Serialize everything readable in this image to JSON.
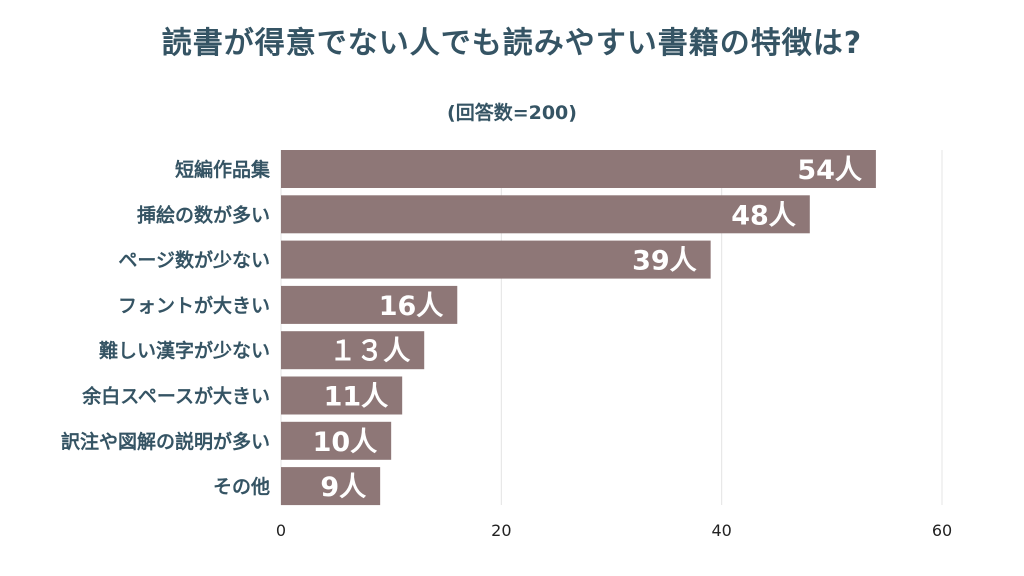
{
  "chart_data": {
    "type": "bar",
    "orientation": "horizontal",
    "title": "読書が得意でない人でも読みやすい書籍の特徴は?",
    "subtitle": "(回答数=200)",
    "categories": [
      "短編作品集",
      "挿絵の数が多い",
      "ページ数が少ない",
      "フォントが大きい",
      "難しい漢字が少ない",
      "余白スペースが大きい",
      "訳注や図解の説明が多い",
      "その他"
    ],
    "values": [
      54,
      48,
      39,
      16,
      13,
      11,
      10,
      9
    ],
    "value_labels": [
      "54人",
      "48人",
      "39人",
      "16人",
      "１３人",
      "11人",
      "10人",
      "9人"
    ],
    "xlim": [
      0,
      60
    ],
    "xticks": [
      0,
      20,
      40,
      60
    ],
    "grid": true,
    "legend": "none",
    "bar_color": "#8e7777",
    "text_color": "#355464"
  }
}
